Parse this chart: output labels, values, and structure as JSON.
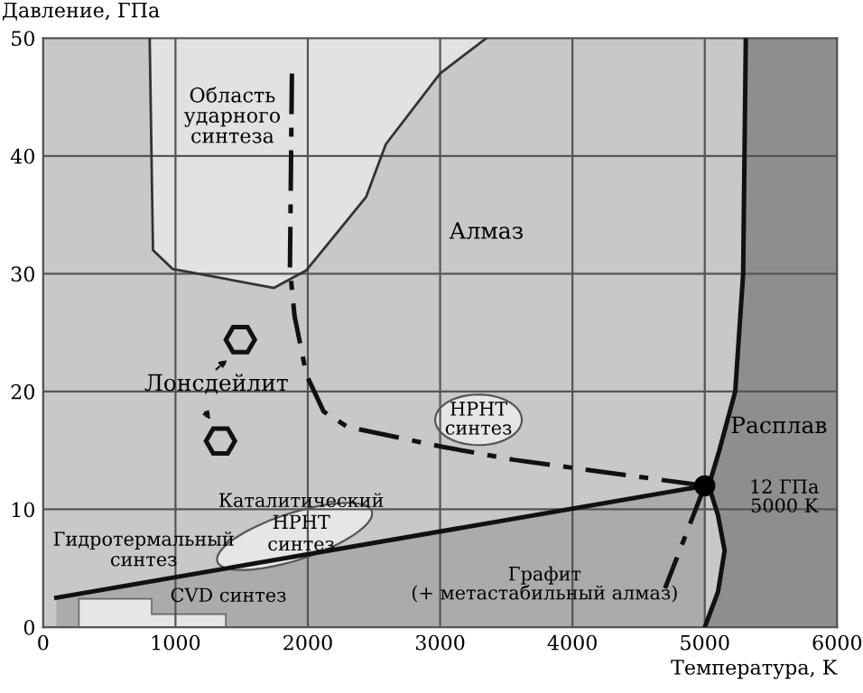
{
  "chart_data": {
    "type": "line",
    "xlabel": "Температура, K",
    "ylabel": "Давление, ГПа",
    "xlim": [
      0,
      6000
    ],
    "ylim": [
      0,
      50
    ],
    "xticks": [
      0,
      1000,
      2000,
      3000,
      4000,
      5000,
      6000
    ],
    "yticks": [
      0,
      10,
      20,
      30,
      40,
      50
    ],
    "grid": true,
    "legend": false,
    "series": [
      {
        "color": "#333333",
        "x": [
          805,
          830,
          980,
          1745,
          1990,
          2440,
          2590,
          3000,
          3350
        ],
        "values": [
          50,
          32,
          30.4,
          28.8,
          30.3,
          36.5,
          41,
          47,
          50
        ]
      },
      {
        "type": "area",
        "color": "#ababab",
        "x": [
          100,
          5000
        ],
        "values": [
          2.5,
          12
        ]
      },
      {
        "color": "#111111",
        "x": [
          5000,
          5100,
          5150,
          5100,
          5030,
          5110,
          5230,
          5290,
          5300,
          5310
        ],
        "values": [
          0,
          3,
          6.5,
          9.5,
          12,
          15,
          20,
          30,
          40,
          50
        ]
      },
      {
        "color": "#111111",
        "line_style": "dashed",
        "x": [
          1880,
          1865,
          1900,
          1990,
          2120,
          2300,
          3020,
          3560,
          5000
        ],
        "values": [
          47,
          30.4,
          26.4,
          21.4,
          18.3,
          17,
          15.3,
          14.2,
          12
        ]
      },
      {
        "color": "#111111",
        "line_style": "dashed",
        "x": [
          5000,
          4700
        ],
        "values": [
          12,
          3.3
        ]
      },
      {
        "type": "scatter",
        "color": "#000000",
        "marker": "circle",
        "x": [
          5000
        ],
        "values": [
          12
        ]
      }
    ],
    "annotations": [
      "Область\nударного\nсинтеза",
      "Алмаз",
      "Лонсдейлит",
      "HPHT\nсинтез",
      "Каталитический\nHPHT\nсинтез",
      "Гидротермальный\nсинтез",
      "CVD синтез",
      "Графит\n(+ метастабильный алмаз)",
      "Расплав",
      "12 ГПа\n5000 K"
    ]
  }
}
